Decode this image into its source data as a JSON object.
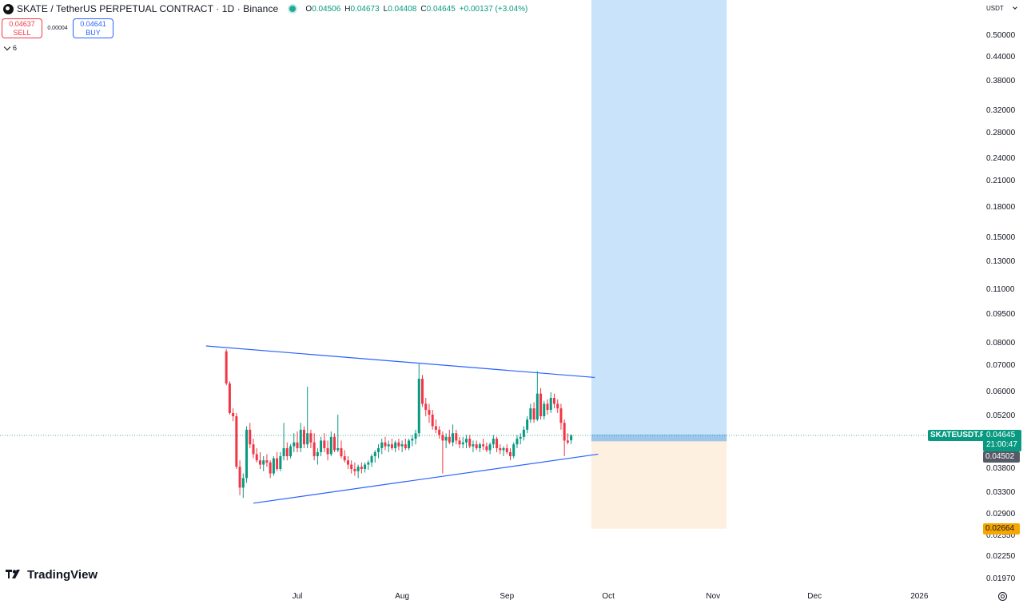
{
  "header": {
    "title": "SKATE / TetherUS PERPETUAL CONTRACT · 1D · Binance",
    "ohlc": [
      {
        "k": "O",
        "v": "0.04506"
      },
      {
        "k": "H",
        "v": "0.04673"
      },
      {
        "k": "L",
        "v": "0.04408"
      },
      {
        "k": "C",
        "v": "0.04645"
      },
      {
        "k": "",
        "v": "+0.00137 (+3.04%)"
      }
    ],
    "colors": {
      "up": "#089981",
      "down": "#f23645",
      "line": "#2962ff"
    }
  },
  "trade_panel": {
    "sell_price": "0.04637",
    "sell_label": "SELL",
    "spread": "0.00004",
    "buy_price": "0.04641",
    "buy_label": "BUY"
  },
  "indicator_toggle": {
    "count": "6"
  },
  "currency_selector": {
    "value": "USDT"
  },
  "price_tags": {
    "symbol": "SKATEUSDT.P",
    "last_price": "0.04645",
    "countdown": "21:00:47",
    "stop_price": "0.04502",
    "target_price": "0.02664"
  },
  "branding": {
    "logo_text": "TradingView"
  },
  "chart_data": {
    "type": "candlestick",
    "scale": "log",
    "y_ticks": [
      "0.50000",
      "0.44000",
      "0.38000",
      "0.32000",
      "0.28000",
      "0.24000",
      "0.21000",
      "0.18000",
      "0.15000",
      "0.13000",
      "0.11000",
      "0.09500",
      "0.08000",
      "0.07000",
      "0.06000",
      "0.05200",
      "0.03800",
      "0.03300",
      "0.02900",
      "0.02550",
      "0.02250",
      "0.01970"
    ],
    "x_ticks": [
      "Jul",
      "Aug",
      "Sep",
      "Oct",
      "Nov",
      "Dec",
      "2026"
    ],
    "candles": [
      [
        0.0765,
        0.0775,
        0.0625,
        0.0632
      ],
      [
        0.0632,
        0.064,
        0.0525,
        0.053
      ],
      [
        0.053,
        0.0545,
        0.0505,
        0.052
      ],
      [
        0.052,
        0.053,
        0.038,
        0.0385
      ],
      [
        0.0385,
        0.04,
        0.0325,
        0.034
      ],
      [
        0.034,
        0.037,
        0.032,
        0.036
      ],
      [
        0.036,
        0.049,
        0.035,
        0.048
      ],
      [
        0.048,
        0.05,
        0.043,
        0.044
      ],
      [
        0.044,
        0.0455,
        0.0405,
        0.0415
      ],
      [
        0.0415,
        0.043,
        0.0395,
        0.04
      ],
      [
        0.04,
        0.042,
        0.038,
        0.039
      ],
      [
        0.039,
        0.041,
        0.0375,
        0.04
      ],
      [
        0.04,
        0.0415,
        0.0385,
        0.0395
      ],
      [
        0.0395,
        0.04,
        0.036,
        0.037
      ],
      [
        0.037,
        0.041,
        0.0365,
        0.0405
      ],
      [
        0.0405,
        0.042,
        0.0375,
        0.038
      ],
      [
        0.038,
        0.042,
        0.0375,
        0.041
      ],
      [
        0.041,
        0.05,
        0.04,
        0.043
      ],
      [
        0.043,
        0.0445,
        0.04,
        0.041
      ],
      [
        0.041,
        0.044,
        0.0405,
        0.0435
      ],
      [
        0.0435,
        0.047,
        0.042,
        0.0445
      ],
      [
        0.0445,
        0.0475,
        0.042,
        0.043
      ],
      [
        0.043,
        0.05,
        0.042,
        0.048
      ],
      [
        0.048,
        0.049,
        0.043,
        0.044
      ],
      [
        0.044,
        0.062,
        0.043,
        0.047
      ],
      [
        0.047,
        0.048,
        0.043,
        0.0445
      ],
      [
        0.0445,
        0.047,
        0.04,
        0.041
      ],
      [
        0.041,
        0.043,
        0.039,
        0.042
      ],
      [
        0.042,
        0.046,
        0.041,
        0.045
      ],
      [
        0.045,
        0.047,
        0.042,
        0.043
      ],
      [
        0.043,
        0.045,
        0.04,
        0.0415
      ],
      [
        0.0415,
        0.0475,
        0.041,
        0.046
      ],
      [
        0.046,
        0.047,
        0.042,
        0.0425
      ],
      [
        0.0425,
        0.0525,
        0.042,
        0.043
      ],
      [
        0.043,
        0.045,
        0.0405,
        0.041
      ],
      [
        0.041,
        0.0425,
        0.0395,
        0.04
      ],
      [
        0.04,
        0.041,
        0.038,
        0.039
      ],
      [
        0.039,
        0.04,
        0.037,
        0.038
      ],
      [
        0.038,
        0.0395,
        0.0365,
        0.0375
      ],
      [
        0.0375,
        0.039,
        0.036,
        0.0385
      ],
      [
        0.0385,
        0.0395,
        0.037,
        0.038
      ],
      [
        0.038,
        0.0395,
        0.0372,
        0.039
      ],
      [
        0.039,
        0.04,
        0.0378,
        0.0395
      ],
      [
        0.0395,
        0.0415,
        0.0385,
        0.041
      ],
      [
        0.041,
        0.0425,
        0.0395,
        0.042
      ],
      [
        0.042,
        0.044,
        0.0405,
        0.043
      ],
      [
        0.043,
        0.0455,
        0.0415,
        0.0445
      ],
      [
        0.0445,
        0.046,
        0.0425,
        0.0435
      ],
      [
        0.0435,
        0.045,
        0.042,
        0.044
      ],
      [
        0.044,
        0.0455,
        0.0425,
        0.043
      ],
      [
        0.043,
        0.045,
        0.042,
        0.0445
      ],
      [
        0.0445,
        0.0455,
        0.0425,
        0.0435
      ],
      [
        0.0435,
        0.045,
        0.042,
        0.044
      ],
      [
        0.044,
        0.0455,
        0.0425,
        0.043
      ],
      [
        0.043,
        0.0455,
        0.0425,
        0.045
      ],
      [
        0.045,
        0.0465,
        0.0435,
        0.0455
      ],
      [
        0.0455,
        0.048,
        0.044,
        0.047
      ],
      [
        0.047,
        0.071,
        0.046,
        0.065
      ],
      [
        0.065,
        0.0665,
        0.055,
        0.056
      ],
      [
        0.056,
        0.058,
        0.052,
        0.054
      ],
      [
        0.054,
        0.056,
        0.05,
        0.0525
      ],
      [
        0.0525,
        0.054,
        0.048,
        0.049
      ],
      [
        0.049,
        0.051,
        0.047,
        0.048
      ],
      [
        0.048,
        0.049,
        0.0455,
        0.0465
      ],
      [
        0.0465,
        0.0475,
        0.037,
        0.045
      ],
      [
        0.045,
        0.047,
        0.043,
        0.046
      ],
      [
        0.046,
        0.048,
        0.044,
        0.0445
      ],
      [
        0.0445,
        0.0495,
        0.0435,
        0.047
      ],
      [
        0.047,
        0.048,
        0.044,
        0.045
      ],
      [
        0.045,
        0.046,
        0.043,
        0.044
      ],
      [
        0.044,
        0.046,
        0.043,
        0.0445
      ],
      [
        0.0445,
        0.0465,
        0.043,
        0.0455
      ],
      [
        0.0455,
        0.0465,
        0.043,
        0.0435
      ],
      [
        0.0435,
        0.045,
        0.042,
        0.044
      ],
      [
        0.044,
        0.045,
        0.0425,
        0.043
      ],
      [
        0.043,
        0.0445,
        0.042,
        0.044
      ],
      [
        0.044,
        0.0455,
        0.0425,
        0.0435
      ],
      [
        0.0435,
        0.0445,
        0.042,
        0.0425
      ],
      [
        0.0425,
        0.0445,
        0.0415,
        0.044
      ],
      [
        0.044,
        0.0465,
        0.043,
        0.0455
      ],
      [
        0.0455,
        0.046,
        0.042,
        0.043
      ],
      [
        0.043,
        0.044,
        0.0415,
        0.0425
      ],
      [
        0.0425,
        0.0435,
        0.041,
        0.043
      ],
      [
        0.043,
        0.044,
        0.0415,
        0.042
      ],
      [
        0.042,
        0.043,
        0.04,
        0.041
      ],
      [
        0.041,
        0.0445,
        0.0405,
        0.044
      ],
      [
        0.044,
        0.0465,
        0.043,
        0.0455
      ],
      [
        0.0455,
        0.047,
        0.044,
        0.046
      ],
      [
        0.046,
        0.049,
        0.045,
        0.048
      ],
      [
        0.048,
        0.052,
        0.047,
        0.051
      ],
      [
        0.051,
        0.056,
        0.05,
        0.0545
      ],
      [
        0.0545,
        0.0565,
        0.05,
        0.051
      ],
      [
        0.051,
        0.068,
        0.0505,
        0.0595
      ],
      [
        0.0595,
        0.0615,
        0.051,
        0.052
      ],
      [
        0.052,
        0.057,
        0.051,
        0.056
      ],
      [
        0.056,
        0.0575,
        0.0525,
        0.054
      ],
      [
        0.054,
        0.06,
        0.053,
        0.058
      ],
      [
        0.058,
        0.0595,
        0.0545,
        0.056
      ],
      [
        0.056,
        0.0575,
        0.053,
        0.0545
      ],
      [
        0.0545,
        0.056,
        0.048,
        0.05
      ],
      [
        0.05,
        0.051,
        0.041,
        0.045
      ],
      [
        0.045,
        0.047,
        0.044,
        0.0445
      ],
      [
        0.04506,
        0.04673,
        0.04408,
        0.04645
      ]
    ],
    "trendlines": [
      {
        "name": "upper",
        "points": [
          [
            "2025-06-04",
            0.079
          ],
          [
            "2025-09-27",
            0.0655
          ]
        ]
      },
      {
        "name": "lower",
        "points": [
          [
            "2025-06-18",
            0.031
          ],
          [
            "2025-09-28",
            0.0415
          ]
        ]
      }
    ],
    "position": {
      "entry": 0.04645,
      "stop": 0.04502,
      "target": 0.02664,
      "start": "2025-09-26",
      "end": "2025-11-05",
      "target_zone_top": 0.5
    }
  }
}
